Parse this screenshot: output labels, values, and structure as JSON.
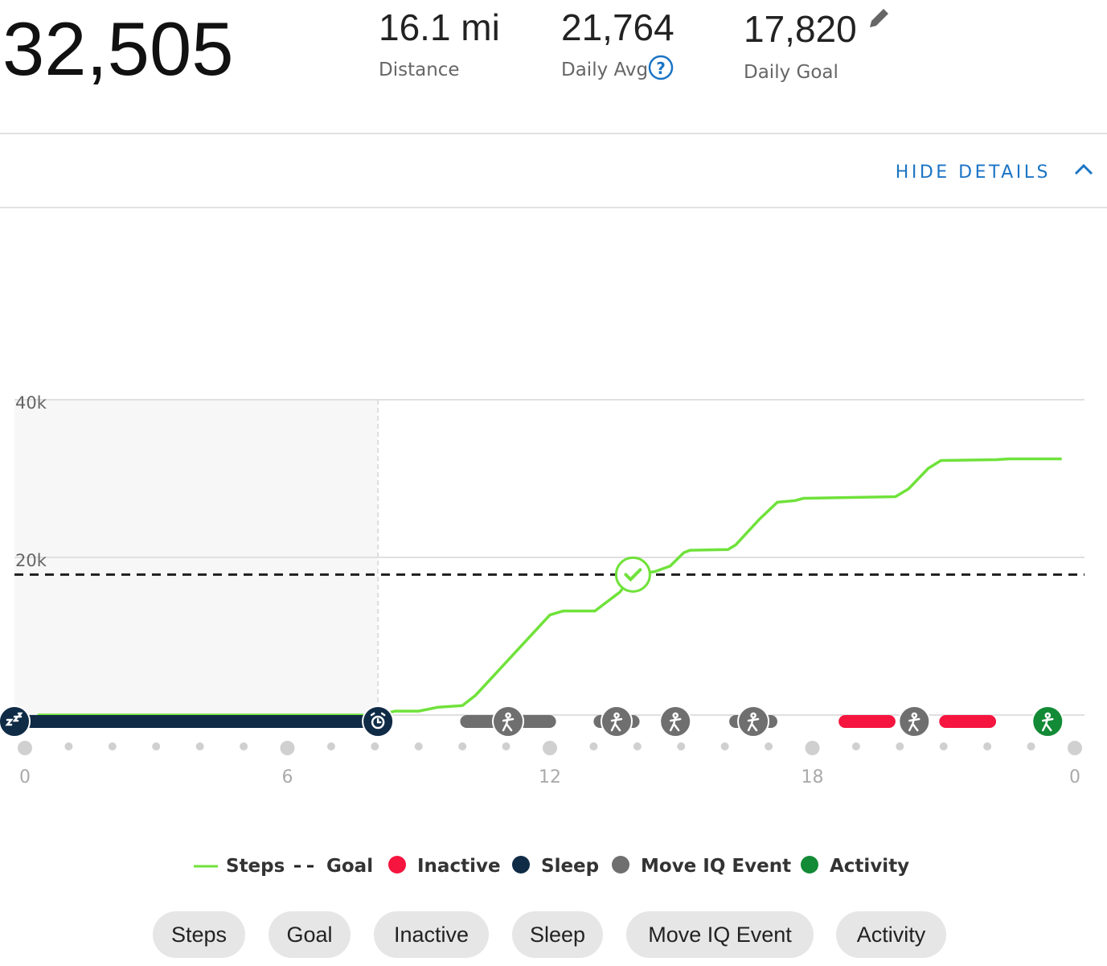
{
  "header": {
    "total_steps": "32,505",
    "stats": [
      {
        "value": "16.1 mi",
        "label": "Distance"
      },
      {
        "value": "21,764",
        "label": "Daily Avg"
      },
      {
        "value": "17,820",
        "label": "Daily Goal"
      }
    ],
    "toggle": "HIDE DETAILS"
  },
  "chart_data": {
    "type": "daily-steps",
    "xlim": [
      0,
      24
    ],
    "xticks": [
      0,
      6,
      12,
      18,
      {
        "value": 24,
        "label": "0"
      }
    ],
    "minor_xticks": [
      1,
      2,
      3,
      4,
      5,
      7,
      8,
      9,
      10,
      11,
      13,
      14,
      15,
      16,
      17,
      19,
      20,
      21,
      22,
      23
    ],
    "ylim": [
      0,
      40000
    ],
    "yticks": [
      {
        "value": 20000,
        "label": "20k"
      },
      {
        "value": 40000,
        "label": "40k"
      }
    ],
    "grid": true,
    "series": [
      {
        "name": "Steps",
        "color": "#6fe23a",
        "x": [
          0.29,
          8.07,
          8.47,
          9.0,
          9.45,
          10.0,
          10.3,
          12.0,
          12.3,
          13.03,
          13.6,
          13.9,
          14.4,
          14.75,
          15.06,
          15.2,
          16.07,
          16.25,
          16.8,
          17.2,
          17.6,
          17.8,
          19.9,
          20.2,
          20.65,
          20.94,
          22.2,
          22.5,
          23.7
        ],
        "values": [
          0,
          0,
          500,
          500,
          1000,
          1200,
          2500,
          12700,
          13200,
          13200,
          15600,
          17820,
          18200,
          18900,
          20600,
          20900,
          21000,
          21600,
          24900,
          27000,
          27200,
          27500,
          27700,
          28700,
          31300,
          32300,
          32400,
          32500,
          32505
        ]
      },
      {
        "name": "Goal",
        "color": "#1f1f1f",
        "value": 17820
      },
      {
        "name": "Inactive",
        "color": "#f5153f",
        "intervals": [
          [
            18.6,
            19.9
          ],
          [
            20.9,
            22.2
          ]
        ]
      },
      {
        "name": "Sleep",
        "color": "#0f2b46",
        "intervals": [
          [
            0,
            8.07
          ]
        ]
      },
      {
        "name": "Move IQ Event",
        "color": "#6f6f6f",
        "intervals": [
          [
            9.95,
            12.14
          ],
          [
            13.0,
            14.05
          ],
          [
            14.87,
            14.87
          ],
          [
            16.1,
            17.2
          ],
          [
            20.33,
            20.33
          ]
        ]
      },
      {
        "name": "Activity",
        "color": "#138a36",
        "intervals": [
          [
            23.38,
            23.38
          ]
        ]
      }
    ]
  }
}
